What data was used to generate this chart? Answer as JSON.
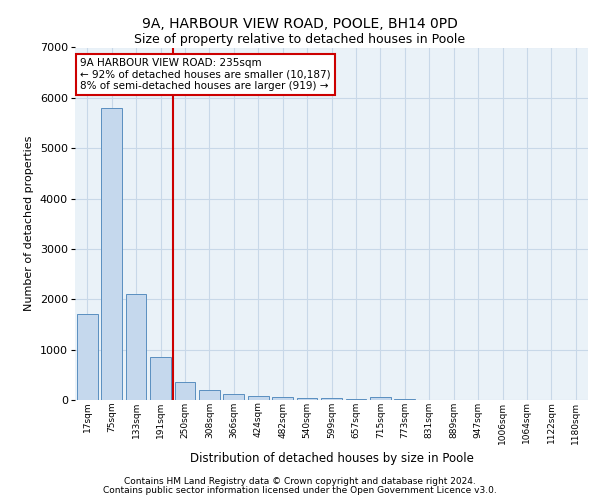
{
  "title1": "9A, HARBOUR VIEW ROAD, POOLE, BH14 0PD",
  "title2": "Size of property relative to detached houses in Poole",
  "xlabel": "Distribution of detached houses by size in Poole",
  "ylabel": "Number of detached properties",
  "categories": [
    "17sqm",
    "75sqm",
    "133sqm",
    "191sqm",
    "250sqm",
    "308sqm",
    "366sqm",
    "424sqm",
    "482sqm",
    "540sqm",
    "599sqm",
    "657sqm",
    "715sqm",
    "773sqm",
    "831sqm",
    "889sqm",
    "947sqm",
    "1006sqm",
    "1064sqm",
    "1122sqm",
    "1180sqm"
  ],
  "values": [
    1700,
    5800,
    2100,
    850,
    350,
    200,
    120,
    80,
    60,
    40,
    30,
    20,
    60,
    10,
    8,
    5,
    4,
    3,
    2,
    2,
    2
  ],
  "bar_color": "#c5d8ed",
  "bar_edge_color": "#5a8fc0",
  "vline_position": 3.5,
  "vline_color": "#cc0000",
  "annotation_text_line1": "9A HARBOUR VIEW ROAD: 235sqm",
  "annotation_text_line2": "← 92% of detached houses are smaller (10,187)",
  "annotation_text_line3": "8% of semi-detached houses are larger (919) →",
  "annotation_box_color": "#cc0000",
  "annotation_bg": "#ffffff",
  "ylim": [
    0,
    7000
  ],
  "yticks": [
    0,
    1000,
    2000,
    3000,
    4000,
    5000,
    6000,
    7000
  ],
  "grid_color": "#c8d8e8",
  "bg_color": "#eaf2f8",
  "footer1": "Contains HM Land Registry data © Crown copyright and database right 2024.",
  "footer2": "Contains public sector information licensed under the Open Government Licence v3.0."
}
